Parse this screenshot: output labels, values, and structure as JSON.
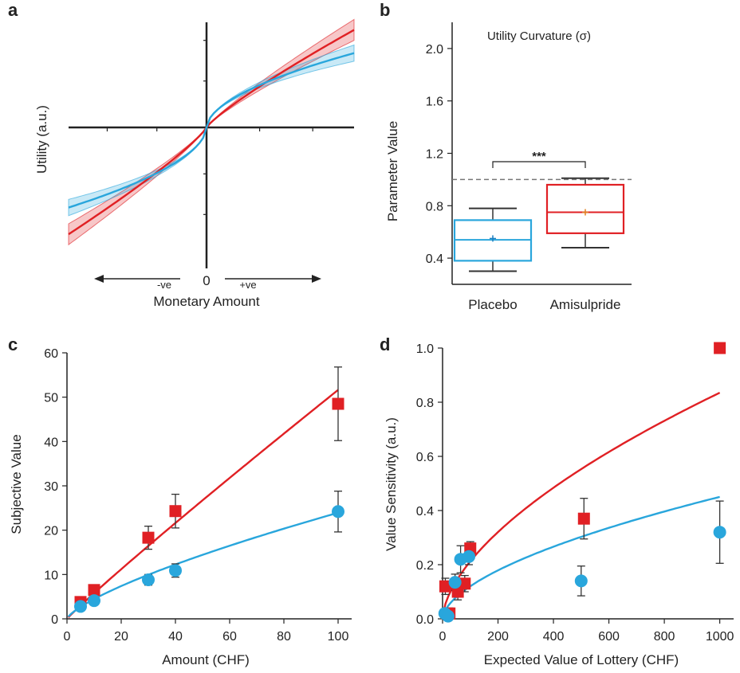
{
  "colors": {
    "placebo": "#29a6dc",
    "amisulpride": "#e02024",
    "axis": "#222222",
    "whisker": "#333333"
  },
  "chart_data": [
    {
      "panel": "a",
      "type": "line",
      "xlabel": "Monetary Amount",
      "ylabel": "Utility (a.u.)",
      "x_annotations": {
        "neg": "-ve",
        "zero": "0",
        "pos": "+ve"
      },
      "xlim": [
        -1,
        1
      ],
      "ylim": [
        -1.06,
        1.06
      ],
      "series": [
        {
          "color_key": "amisulpride",
          "gain_exponent": 0.85,
          "loss_exponent": 0.85,
          "gain_scale": 0.84,
          "loss_scale": 0.92,
          "band": 0.09
        },
        {
          "color_key": "placebo",
          "gain_exponent": 0.55,
          "loss_exponent": 0.55,
          "gain_scale": 0.64,
          "loss_scale": 0.69,
          "band": 0.07
        }
      ]
    },
    {
      "panel": "b",
      "type": "box",
      "title": "Utility Curvature (σ)",
      "ylabel": "Parameter Value",
      "ylim": [
        0.2,
        2.2
      ],
      "yticks": [
        0.4,
        0.8,
        1.2,
        1.6,
        2.0
      ],
      "reference_line": 1.0,
      "significance": "***",
      "categories": [
        "Placebo",
        "Amisulpride"
      ],
      "boxes": [
        {
          "name": "Placebo",
          "whisker_low": 0.3,
          "q1": 0.38,
          "median": 0.54,
          "mean": 0.55,
          "q3": 0.69,
          "whisker_high": 0.78
        },
        {
          "name": "Amisulpride",
          "whisker_low": 0.48,
          "q1": 0.59,
          "median": 0.75,
          "mean": 0.75,
          "q3": 0.96,
          "whisker_high": 1.01
        }
      ]
    },
    {
      "panel": "c",
      "type": "scatter",
      "xlabel": "Amount (CHF)",
      "ylabel": "Subjective Value",
      "xlim": [
        0,
        105
      ],
      "ylim": [
        0,
        60
      ],
      "xticks": [
        0,
        20,
        40,
        60,
        80,
        100
      ],
      "yticks": [
        0,
        10,
        20,
        30,
        40,
        50,
        60
      ],
      "series": [
        {
          "color_key": "amisulpride",
          "marker": "square",
          "points": [
            {
              "x": 5,
              "y": 3.8,
              "err": 0.8
            },
            {
              "x": 10,
              "y": 6.5,
              "err": 1.0
            },
            {
              "x": 30,
              "y": 18.3,
              "err": 2.6
            },
            {
              "x": 40,
              "y": 24.3,
              "err": 3.8
            },
            {
              "x": 100,
              "y": 48.5,
              "err": 8.3
            }
          ],
          "fit": {
            "a": 0.65,
            "b": 0.95
          }
        },
        {
          "color_key": "placebo",
          "marker": "circle",
          "points": [
            {
              "x": 5,
              "y": 2.8,
              "err": 0.6
            },
            {
              "x": 10,
              "y": 4.1,
              "err": 0.7
            },
            {
              "x": 30,
              "y": 8.8,
              "err": 1.2
            },
            {
              "x": 40,
              "y": 10.9,
              "err": 1.5
            },
            {
              "x": 100,
              "y": 24.2,
              "err": 4.6
            }
          ],
          "fit": {
            "a": 0.83,
            "b": 0.73
          }
        }
      ]
    },
    {
      "panel": "d",
      "type": "scatter",
      "xlabel": "Expected Value of Lottery (CHF)",
      "ylabel": "Value Sensitivity (a.u.)",
      "xlim": [
        0,
        1050
      ],
      "ylim": [
        0,
        1.0
      ],
      "xticks": [
        0,
        200,
        400,
        600,
        800,
        1000
      ],
      "yticks": [
        0.0,
        0.2,
        0.4,
        0.6,
        0.8,
        1.0
      ],
      "series": [
        {
          "color_key": "amisulpride",
          "marker": "square",
          "points": [
            {
              "x": 10,
              "y": 0.12,
              "err": 0.03
            },
            {
              "x": 25,
              "y": 0.02,
              "err": 0.02
            },
            {
              "x": 55,
              "y": 0.1,
              "err": 0.03
            },
            {
              "x": 80,
              "y": 0.13,
              "err": 0.03
            },
            {
              "x": 100,
              "y": 0.26,
              "err": 0.025
            },
            {
              "x": 510,
              "y": 0.37,
              "err": 0.075
            },
            {
              "x": 1000,
              "y": 1.0,
              "err": 0
            }
          ],
          "fit": {
            "a": 0.0137,
            "b": 0.595
          }
        },
        {
          "color_key": "placebo",
          "marker": "circle",
          "points": [
            {
              "x": 8,
              "y": 0.02,
              "err": 0.015
            },
            {
              "x": 20,
              "y": 0.01,
              "err": 0.01
            },
            {
              "x": 45,
              "y": 0.135,
              "err": 0.03
            },
            {
              "x": 65,
              "y": 0.22,
              "err": 0.05
            },
            {
              "x": 95,
              "y": 0.23,
              "err": 0.03
            },
            {
              "x": 500,
              "y": 0.14,
              "err": 0.055
            },
            {
              "x": 1000,
              "y": 0.32,
              "err": 0.115
            }
          ],
          "fit": {
            "a": 0.0086,
            "b": 0.573
          }
        }
      ]
    }
  ],
  "panel_labels": [
    "a",
    "b",
    "c",
    "d"
  ]
}
